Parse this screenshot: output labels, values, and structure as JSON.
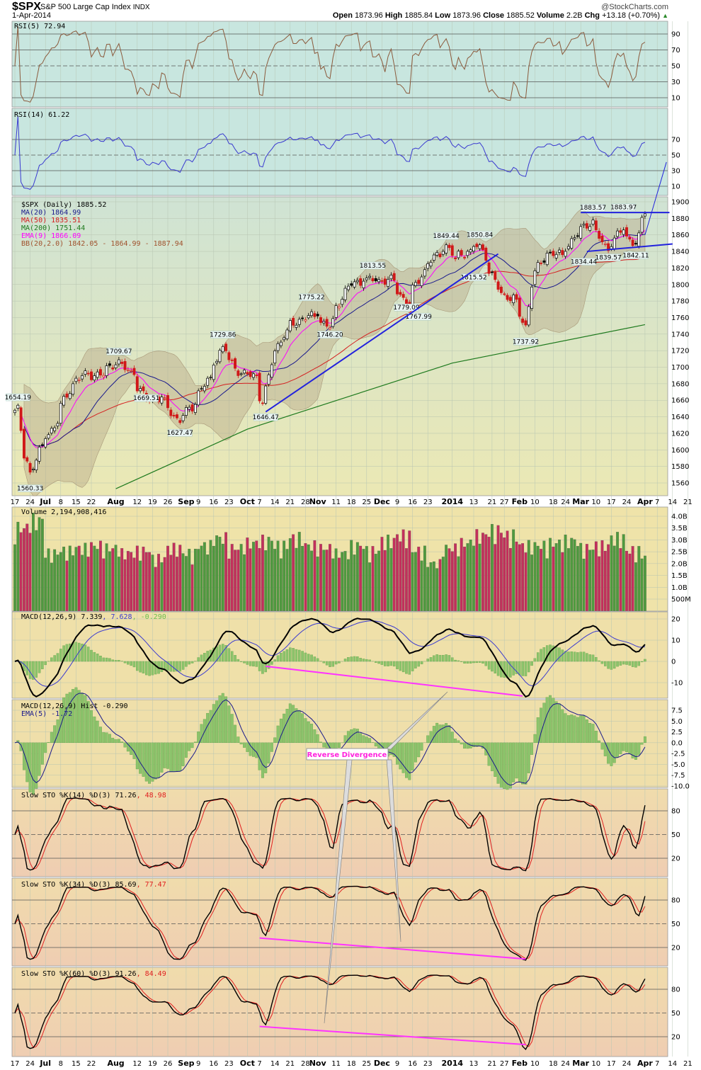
{
  "header": {
    "symbol": "$SPX",
    "name": "S&P 500 Large Cap Index",
    "exchange": "INDX",
    "date": "1-Apr-2014",
    "watermark": "@StockCharts.com",
    "quote": {
      "open_label": "Open",
      "open": "1873.96",
      "high_label": "High",
      "high": "1885.84",
      "low_label": "Low",
      "low": "1873.96",
      "close_label": "Close",
      "close": "1885.52",
      "volume_label": "Volume",
      "volume": "2.2B",
      "chg_label": "Chg",
      "chg": "+13.18 (+0.70%)",
      "chg_direction": "up"
    }
  },
  "legends": {
    "rsi5": "RSI(5) 72.94",
    "rsi14": "RSI(14) 61.22",
    "price": [
      "$SPX (Daily) 1885.52",
      "MA(20) 1864.99",
      "MA(50) 1835.51",
      "MA(200) 1751.44",
      "EMA(9) 1866.09",
      "BB(20,2.0) 1842.05 - 1864.99 - 1887.94"
    ],
    "volume": "Volume 2,194,908,416",
    "macd": {
      "name": "MACD(12,26,9)",
      "macd": "7.339",
      "signal": ", 7.628",
      "hist": ", -0.290"
    },
    "macd_hist": [
      "MACD(12,26,9) Hist -0.290",
      "EMA(5) -1.72"
    ],
    "sto14": {
      "name": "Slow STO %K(14) %D(3)",
      "k": "71.26",
      "d": ", 48.98"
    },
    "sto34": {
      "name": "Slow STO %K(34) %D(3)",
      "k": "85.69",
      "d": ", 77.47"
    },
    "sto60": {
      "name": "Slow STO %K(60) %D(3)",
      "k": "91.26",
      "d": ", 84.49"
    }
  },
  "callout": "Reverse Divergence",
  "colors": {
    "rsi5": "#8b5a3c",
    "rsi14": "#3a3ad0",
    "ma20": "#1a1a8c",
    "ma50": "#d42020",
    "ma200": "#1e7a1e",
    "ema9": "#ff00ff",
    "bb": "#b8a888",
    "vol_up": "#4f9a3f",
    "vol_down": "#c2305c",
    "trend": "#2222dd",
    "divergence": "#ff33ff"
  },
  "chart_data": {
    "type": "candlestick",
    "title": "$SPX S&P 500 Large Cap Index INDX",
    "ylim": [
      1550,
      1905
    ],
    "price_axis_ticks": [
      1900,
      1880,
      1860,
      1840,
      1820,
      1800,
      1780,
      1760,
      1740,
      1720,
      1700,
      1680,
      1660,
      1640,
      1620,
      1600,
      1580,
      1560
    ],
    "x_ticks": [
      {
        "label": "17",
        "date": "2013-06-17"
      },
      {
        "label": "24",
        "date": "2013-06-24"
      },
      {
        "label": "Jul",
        "date": "2013-07-01",
        "bold": true
      },
      {
        "label": "8",
        "date": "2013-07-08"
      },
      {
        "label": "15",
        "date": "2013-07-15"
      },
      {
        "label": "22",
        "date": "2013-07-22"
      },
      {
        "label": "Aug",
        "date": "2013-08-01",
        "bold": true
      },
      {
        "label": "12",
        "date": "2013-08-12"
      },
      {
        "label": "19",
        "date": "2013-08-19"
      },
      {
        "label": "26",
        "date": "2013-08-26"
      },
      {
        "label": "Sep",
        "date": "2013-09-03",
        "bold": true
      },
      {
        "label": "9",
        "date": "2013-09-09"
      },
      {
        "label": "16",
        "date": "2013-09-16"
      },
      {
        "label": "23",
        "date": "2013-09-23"
      },
      {
        "label": "Oct",
        "date": "2013-10-01",
        "bold": true
      },
      {
        "label": "7",
        "date": "2013-10-07"
      },
      {
        "label": "14",
        "date": "2013-10-14"
      },
      {
        "label": "21",
        "date": "2013-10-21"
      },
      {
        "label": "28",
        "date": "2013-10-28"
      },
      {
        "label": "Nov",
        "date": "2013-11-01",
        "bold": true
      },
      {
        "label": "11",
        "date": "2013-11-11"
      },
      {
        "label": "18",
        "date": "2013-11-18"
      },
      {
        "label": "25",
        "date": "2013-11-25"
      },
      {
        "label": "Dec",
        "date": "2013-12-02",
        "bold": true
      },
      {
        "label": "9",
        "date": "2013-12-09"
      },
      {
        "label": "16",
        "date": "2013-12-16"
      },
      {
        "label": "23",
        "date": "2013-12-23"
      },
      {
        "label": "2014",
        "date": "2014-01-02",
        "bold": true
      },
      {
        "label": "13",
        "date": "2014-01-13"
      },
      {
        "label": "21",
        "date": "2014-01-21"
      },
      {
        "label": "27",
        "date": "2014-01-27"
      },
      {
        "label": "Feb",
        "date": "2014-02-03",
        "bold": true
      },
      {
        "label": "10",
        "date": "2014-02-10"
      },
      {
        "label": "18",
        "date": "2014-02-18"
      },
      {
        "label": "24",
        "date": "2014-02-24"
      },
      {
        "label": "Mar",
        "date": "2014-03-03",
        "bold": true
      },
      {
        "label": "10",
        "date": "2014-03-10"
      },
      {
        "label": "17",
        "date": "2014-03-17"
      },
      {
        "label": "24",
        "date": "2014-03-24"
      },
      {
        "label": "Apr",
        "date": "2014-04-01",
        "bold": true
      },
      {
        "label": "7",
        "date": "2014-04-07"
      },
      {
        "label": "14",
        "date": "2014-04-14"
      },
      {
        "label": "21",
        "date": "2014-04-21"
      }
    ],
    "close_series": [
      [
        "2013-06-17",
        1648
      ],
      [
        "2013-06-18",
        1654
      ],
      [
        "2013-06-20",
        1590
      ],
      [
        "2013-06-24",
        1573
      ],
      [
        "2013-06-28",
        1606
      ],
      [
        "2013-07-05",
        1632
      ],
      [
        "2013-07-12",
        1680
      ],
      [
        "2013-07-19",
        1692
      ],
      [
        "2013-07-26",
        1690
      ],
      [
        "2013-08-02",
        1709
      ],
      [
        "2013-08-09",
        1691
      ],
      [
        "2013-08-15",
        1661
      ],
      [
        "2013-08-23",
        1663
      ],
      [
        "2013-08-30",
        1633
      ],
      [
        "2013-09-06",
        1655
      ],
      [
        "2013-09-13",
        1688
      ],
      [
        "2013-09-19",
        1725
      ],
      [
        "2013-09-27",
        1692
      ],
      [
        "2013-10-04",
        1690
      ],
      [
        "2013-10-08",
        1656
      ],
      [
        "2013-10-11",
        1703
      ],
      [
        "2013-10-18",
        1745
      ],
      [
        "2013-10-25",
        1759
      ],
      [
        "2013-11-01",
        1762
      ],
      [
        "2013-11-07",
        1748
      ],
      [
        "2013-11-15",
        1798
      ],
      [
        "2013-11-22",
        1804
      ],
      [
        "2013-11-29",
        1806
      ],
      [
        "2013-12-06",
        1805
      ],
      [
        "2013-12-13",
        1775
      ],
      [
        "2013-12-20",
        1818
      ],
      [
        "2013-12-31",
        1848
      ],
      [
        "2014-01-03",
        1831
      ],
      [
        "2014-01-10",
        1842
      ],
      [
        "2014-01-15",
        1848
      ],
      [
        "2014-01-24",
        1790
      ],
      [
        "2014-01-31",
        1782
      ],
      [
        "2014-02-05",
        1751
      ],
      [
        "2014-02-07",
        1797
      ],
      [
        "2014-02-14",
        1838
      ],
      [
        "2014-02-21",
        1836
      ],
      [
        "2014-02-28",
        1859
      ],
      [
        "2014-03-07",
        1878
      ],
      [
        "2014-03-14",
        1841
      ],
      [
        "2014-03-21",
        1866
      ],
      [
        "2014-03-27",
        1849
      ],
      [
        "2014-04-01",
        1885.52
      ]
    ],
    "ma200_series": [
      [
        "2013-08-01",
        1553
      ],
      [
        "2013-10-01",
        1625
      ],
      [
        "2014-01-02",
        1705
      ],
      [
        "2014-04-01",
        1751.44
      ]
    ],
    "price_labels": [
      {
        "text": "1654.19",
        "date": "2013-06-18",
        "value": 1654.19,
        "pos": "above"
      },
      {
        "text": "1560.33",
        "date": "2013-06-24",
        "value": 1560.33,
        "pos": "below"
      },
      {
        "text": "1709.67",
        "date": "2013-08-02",
        "value": 1709.67,
        "pos": "above"
      },
      {
        "text": "1669.51",
        "date": "2013-08-15",
        "value": 1669.51,
        "pos": "below"
      },
      {
        "text": "1627.47",
        "date": "2013-08-30",
        "value": 1627.47,
        "pos": "below"
      },
      {
        "text": "1729.86",
        "date": "2013-09-19",
        "value": 1729.86,
        "pos": "above"
      },
      {
        "text": "1646.47",
        "date": "2013-10-09",
        "value": 1646.47,
        "pos": "below"
      },
      {
        "text": "1775.22",
        "date": "2013-10-30",
        "value": 1775.22,
        "pos": "above"
      },
      {
        "text": "1746.20",
        "date": "2013-11-07",
        "value": 1746.2,
        "pos": "below"
      },
      {
        "text": "1813.55",
        "date": "2013-11-27",
        "value": 1813.55,
        "pos": "above"
      },
      {
        "text": "1779.09",
        "date": "2013-12-12",
        "value": 1779.09,
        "pos": "below"
      },
      {
        "text": "1767.99",
        "date": "2013-12-18",
        "value": 1767.99,
        "pos": "below"
      },
      {
        "text": "1849.44",
        "date": "2013-12-31",
        "value": 1849.44,
        "pos": "above"
      },
      {
        "text": "1850.84",
        "date": "2014-01-15",
        "value": 1850.84,
        "pos": "above"
      },
      {
        "text": "1815.52",
        "date": "2014-01-13",
        "value": 1815.52,
        "pos": "below"
      },
      {
        "text": "1737.92",
        "date": "2014-02-05",
        "value": 1737.92,
        "pos": "below"
      },
      {
        "text": "1883.57",
        "date": "2014-03-07",
        "value": 1883.57,
        "pos": "above"
      },
      {
        "text": "1883.97",
        "date": "2014-03-21",
        "value": 1883.97,
        "pos": "above"
      },
      {
        "text": "1834.44",
        "date": "2014-03-04",
        "value": 1834.44,
        "pos": "below"
      },
      {
        "text": "1839.57",
        "date": "2014-03-14",
        "value": 1839.57,
        "pos": "below"
      },
      {
        "text": "1842.11",
        "date": "2014-03-27",
        "value": 1842.11,
        "pos": "below"
      }
    ],
    "trendlines": [
      {
        "panel": "price",
        "from": [
          "2013-10-09",
          1646
        ],
        "to": [
          "2014-01-23",
          1837
        ],
        "color": "trend"
      },
      {
        "panel": "price",
        "from": [
          "2014-03-03",
          1887
        ],
        "to": [
          "2014-04-11",
          1887
        ],
        "color": "trend"
      },
      {
        "panel": "price",
        "from": [
          "2014-03-05",
          1840
        ],
        "to": [
          "2014-04-14",
          1849
        ],
        "color": "trend"
      },
      {
        "panel": "price",
        "from": [
          "2014-04-01",
          1860
        ],
        "to": [
          "2014-04-10",
          1948
        ],
        "color": "trend",
        "thin": true
      },
      {
        "panel": "macd",
        "from": [
          "2013-10-09",
          -2.3
        ],
        "to": [
          "2014-02-04",
          -16.3
        ],
        "color": "divergence"
      },
      {
        "panel": "sto34",
        "from": [
          "2013-10-07",
          32
        ],
        "to": [
          "2014-02-05",
          5.4
        ],
        "color": "divergence"
      },
      {
        "panel": "sto60",
        "from": [
          "2013-10-07",
          33
        ],
        "to": [
          "2014-02-05",
          10
        ],
        "color": "divergence"
      }
    ],
    "volume_weekly_billions": [
      3.3,
      3.6,
      2.3,
      2.4,
      2.5,
      2.6,
      2.5,
      2.3,
      2.4,
      2.1,
      2.5,
      2.3,
      2.6,
      2.9,
      2.5,
      2.7,
      2.8,
      2.6,
      2.9,
      2.6,
      2.5,
      2.3,
      2.6,
      2.4,
      2.8,
      3.0,
      2.4,
      1.9,
      2.5,
      2.7,
      3.0,
      3.2,
      3.0,
      2.6,
      2.6,
      2.7,
      2.8,
      2.5,
      2.6,
      2.9,
      2.4,
      2.2
    ],
    "volume_axis_ticks": [
      "4.0B",
      "3.5B",
      "3.0B",
      "2.5B",
      "2.0B",
      "1.5B",
      "1.0B",
      "500M"
    ],
    "rsi5_ticks": [
      90,
      70,
      50,
      30,
      10
    ],
    "rsi14_ticks": [
      70,
      50,
      30,
      10
    ],
    "macd_ticks": [
      20,
      10,
      0,
      -10
    ],
    "macd_hist_ticks": [
      "7.5",
      "5.0",
      "2.5",
      "0.0",
      "-2.5",
      "-5.0",
      "-7.5",
      "-10.0"
    ],
    "sto_ticks": [
      80,
      50,
      20
    ]
  }
}
